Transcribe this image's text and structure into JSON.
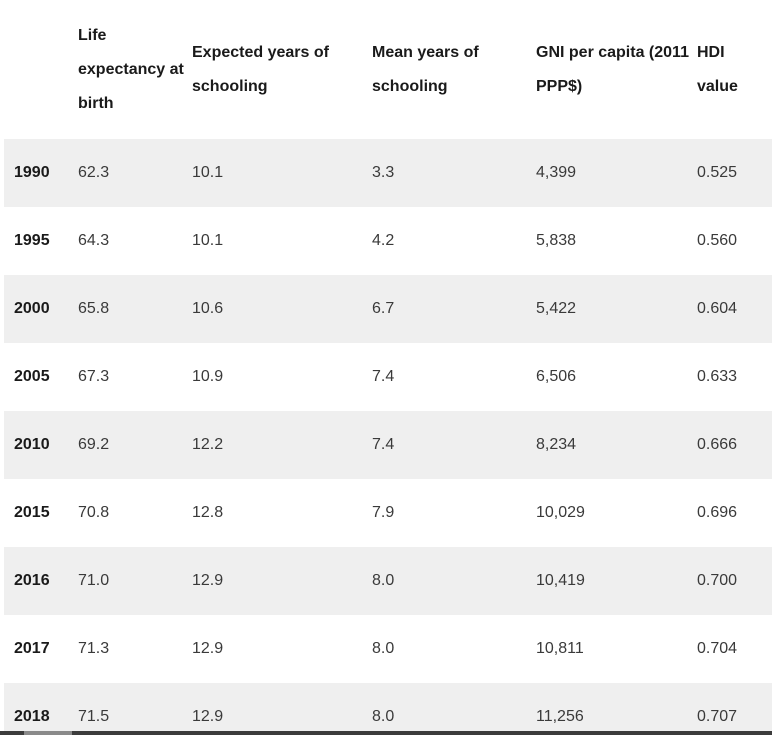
{
  "table": {
    "headers": [
      "",
      "Life expectancy at birth",
      "Expected years of schooling",
      "Mean years of schooling",
      "GNI per capita (2011 PPP$)",
      "HDI value"
    ],
    "rows": [
      [
        "1990",
        "62.3",
        "10.1",
        "3.3",
        "4,399",
        "0.525"
      ],
      [
        "1995",
        "64.3",
        "10.1",
        "4.2",
        "5,838",
        "0.560"
      ],
      [
        "2000",
        "65.8",
        "10.6",
        "6.7",
        "5,422",
        "0.604"
      ],
      [
        "2005",
        "67.3",
        "10.9",
        "7.4",
        "6,506",
        "0.633"
      ],
      [
        "2010",
        "69.2",
        "12.2",
        "7.4",
        "8,234",
        "0.666"
      ],
      [
        "2015",
        "70.8",
        "12.8",
        "7.9",
        "10,029",
        "0.696"
      ],
      [
        "2016",
        "71.0",
        "12.9",
        "8.0",
        "10,419",
        "0.700"
      ],
      [
        "2017",
        "71.3",
        "12.9",
        "8.0",
        "10,811",
        "0.704"
      ],
      [
        "2018",
        "71.5",
        "12.9",
        "8.0",
        "11,256",
        "0.707"
      ]
    ]
  },
  "colors": {
    "shaded_row": "#efefef",
    "header_text": "#1a1a1a",
    "cell_text": "#3a3a3a"
  }
}
